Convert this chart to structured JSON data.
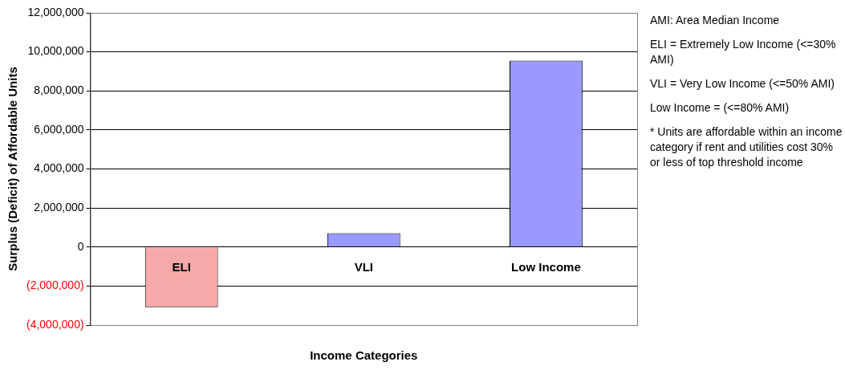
{
  "chart_data": {
    "type": "bar",
    "xlabel": "Income Categories",
    "ylabel": "Surplus (Deficit) of Affordable Units",
    "categories": [
      "ELI",
      "VLI",
      "Low Income"
    ],
    "values": [
      -3080000,
      710000,
      9550000
    ],
    "colors": [
      "#f7a8a8",
      "#9999ff",
      "#9999ff"
    ],
    "ylim": [
      -4000000,
      12000000
    ],
    "yticks": [
      {
        "value": -4000000,
        "label": "(4,000,000)"
      },
      {
        "value": -2000000,
        "label": "(2,000,000)"
      },
      {
        "value": 0,
        "label": "0"
      },
      {
        "value": 2000000,
        "label": "2,000,000"
      },
      {
        "value": 4000000,
        "label": "4,000,000"
      },
      {
        "value": 6000000,
        "label": "6,000,000"
      },
      {
        "value": 8000000,
        "label": "8,000,000"
      },
      {
        "value": 10000000,
        "label": "10,000,000"
      },
      {
        "value": 12000000,
        "label": "12,000,000"
      }
    ],
    "grid": "y",
    "legend": false,
    "annotations": [
      "AMI: Area Median Income",
      "ELI = Extremely Low Income (<=30% AMI)",
      "VLI = Very Low Income (<=50% AMI)",
      "Low Income = (<=80% AMI)",
      "* Units are affordable within an income category if rent and utilities cost 30% or less of top threshold income"
    ]
  }
}
